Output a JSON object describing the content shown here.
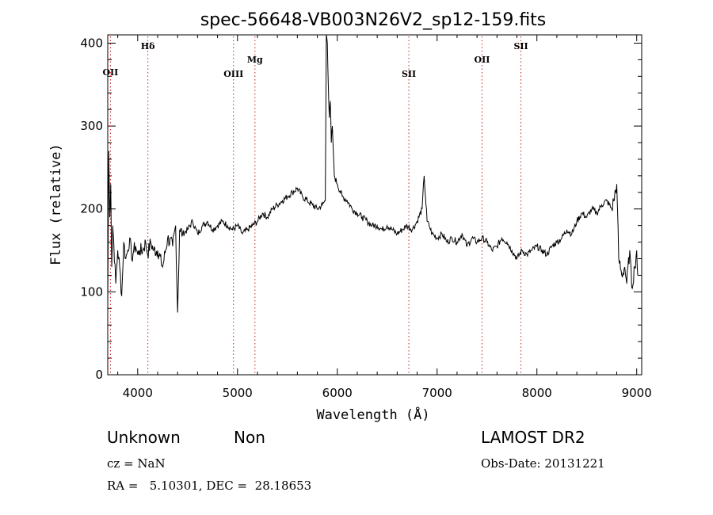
{
  "chart_data": {
    "type": "line",
    "title": "spec-56648-VB003N26V2_sp12-159.fits",
    "xlabel": "Wavelength (Å)",
    "ylabel": "Flux (relative)",
    "xlim": [
      3700,
      9050
    ],
    "ylim": [
      0,
      410
    ],
    "xticks": [
      4000,
      5000,
      6000,
      7000,
      8000,
      9000
    ],
    "yticks": [
      0,
      100,
      200,
      300,
      400
    ],
    "grid": false,
    "line_color": "#000000",
    "marker_color": "#cc2222",
    "lines": [
      {
        "label": "OII",
        "x": 3727
      },
      {
        "label": "Hδ",
        "x": 4102
      },
      {
        "label": "OIII",
        "x": 4960
      },
      {
        "label": "Mg",
        "x": 5175
      },
      {
        "label": "SII",
        "x": 6717
      },
      {
        "label": "OII",
        "x": 7450
      },
      {
        "label": "SII",
        "x": 7840
      }
    ],
    "series": [
      {
        "x": [
          3700,
          3710,
          3720,
          3730,
          3740,
          3750,
          3760,
          3780,
          3800,
          3820,
          3840,
          3860,
          3880,
          3900,
          3920,
          3940,
          3960,
          3980,
          4000,
          4020,
          4050,
          4080,
          4100,
          4130,
          4160,
          4200,
          4250,
          4300,
          4350,
          4380,
          4400,
          4420,
          4450,
          4500,
          4550,
          4600,
          4650,
          4700,
          4750,
          4800,
          4850,
          4900,
          4950,
          5000,
          5050,
          5100,
          5150,
          5200,
          5250,
          5300,
          5350,
          5400,
          5450,
          5500,
          5550,
          5600,
          5650,
          5700,
          5750,
          5800,
          5850,
          5880,
          5890,
          5900,
          5910,
          5920,
          5930,
          5940,
          5950,
          5960,
          5970,
          6000,
          6050,
          6100,
          6150,
          6200,
          6250,
          6300,
          6350,
          6400,
          6450,
          6500,
          6550,
          6600,
          6650,
          6700,
          6750,
          6800,
          6850,
          6870,
          6900,
          6920,
          6950,
          7000,
          7050,
          7100,
          7150,
          7200,
          7250,
          7300,
          7350,
          7400,
          7450,
          7500,
          7550,
          7600,
          7650,
          7700,
          7750,
          7800,
          7850,
          7900,
          7950,
          8000,
          8050,
          8100,
          8150,
          8200,
          8250,
          8300,
          8350,
          8400,
          8450,
          8500,
          8550,
          8600,
          8650,
          8700,
          8750,
          8770,
          8800,
          8820,
          8850,
          8880,
          8900,
          8930,
          8950,
          8980,
          9000,
          9010
        ],
        "y": [
          80,
          270,
          190,
          230,
          130,
          180,
          160,
          110,
          150,
          130,
          95,
          160,
          140,
          150,
          165,
          140,
          150,
          155,
          145,
          150,
          150,
          160,
          145,
          160,
          150,
          150,
          130,
          165,
          155,
          180,
          75,
          175,
          170,
          175,
          185,
          170,
          180,
          185,
          175,
          180,
          185,
          180,
          175,
          180,
          170,
          175,
          180,
          185,
          195,
          190,
          200,
          205,
          210,
          215,
          220,
          225,
          215,
          210,
          205,
          200,
          205,
          210,
          420,
          400,
          350,
          310,
          330,
          280,
          300,
          270,
          240,
          230,
          215,
          210,
          200,
          195,
          190,
          185,
          180,
          180,
          175,
          180,
          175,
          170,
          175,
          180,
          175,
          185,
          200,
          240,
          185,
          180,
          170,
          165,
          170,
          160,
          165,
          160,
          170,
          155,
          165,
          160,
          165,
          160,
          150,
          155,
          165,
          160,
          150,
          140,
          150,
          145,
          150,
          155,
          150,
          145,
          155,
          160,
          165,
          175,
          170,
          185,
          195,
          190,
          200,
          195,
          205,
          210,
          200,
          210,
          230,
          140,
          120,
          130,
          110,
          150,
          105,
          130,
          150,
          120
        ]
      }
    ]
  },
  "info": {
    "class": "Unknown",
    "subclass": "Non",
    "cz": "cz = NaN",
    "radec": "RA =   5.10301, DEC =  28.18653",
    "survey": "LAMOST DR2",
    "obsdate": "Obs-Date: 20131221"
  }
}
